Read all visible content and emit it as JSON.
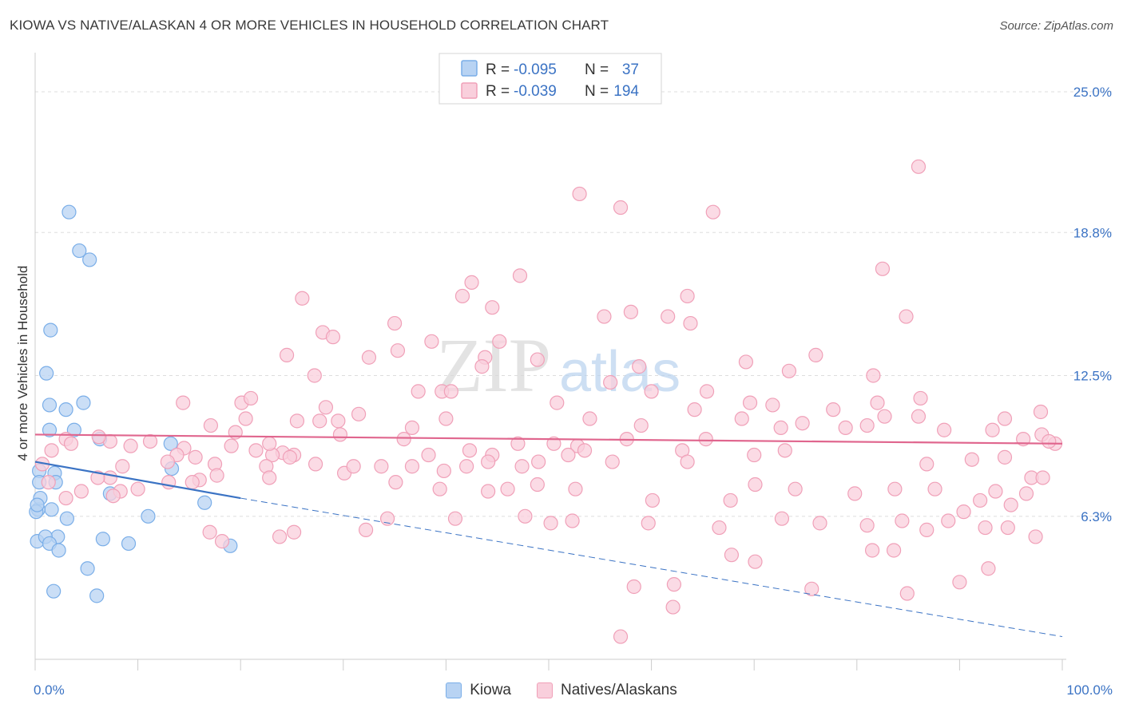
{
  "chart_data": {
    "type": "scatter",
    "title": "KIOWA VS NATIVE/ALASKAN 4 OR MORE VEHICLES IN HOUSEHOLD CORRELATION CHART",
    "source": "Source: ZipAtlas.com",
    "xlabel": "",
    "ylabel": "4 or more Vehicles in Household",
    "xlim": [
      0,
      100
    ],
    "ylim": [
      0,
      26.3
    ],
    "y_ticks": [
      {
        "value": 6.3,
        "label": "6.3%"
      },
      {
        "value": 12.5,
        "label": "12.5%"
      },
      {
        "value": 18.8,
        "label": "18.8%"
      },
      {
        "value": 25.0,
        "label": "25.0%"
      }
    ],
    "x_ticks": [
      {
        "value": 0,
        "label": "0.0%"
      },
      {
        "value": 100,
        "label": "100.0%"
      }
    ],
    "grid": true,
    "watermark": "ZIPatlas",
    "legend_box": [
      {
        "r_label": "R =",
        "r_value": "-0.095",
        "n_label": "N =",
        "n_value": "37"
      },
      {
        "r_label": "R =",
        "r_value": "-0.039",
        "n_label": "N =",
        "n_value": "194"
      }
    ],
    "series": [
      {
        "name": "Kiowa",
        "color": "#7aaee8",
        "fill": "#b8d3f3",
        "trend": {
          "x0": 0,
          "y0": 8.7,
          "x1": 20,
          "y1": 7.1,
          "dash_to_x": 100,
          "dash_to_y": 1.0,
          "color": "#3b73c4"
        },
        "points": [
          [
            3.3,
            19.7
          ],
          [
            5.3,
            17.6
          ],
          [
            4.3,
            18.0
          ],
          [
            1.5,
            14.5
          ],
          [
            1.1,
            12.6
          ],
          [
            1.4,
            11.2
          ],
          [
            4.7,
            11.3
          ],
          [
            3.0,
            11.0
          ],
          [
            1.4,
            10.1
          ],
          [
            3.8,
            10.1
          ],
          [
            6.3,
            9.7
          ],
          [
            13.2,
            9.5
          ],
          [
            0.4,
            8.3
          ],
          [
            1.9,
            8.2
          ],
          [
            13.3,
            8.4
          ],
          [
            0.4,
            7.8
          ],
          [
            2.0,
            7.8
          ],
          [
            7.3,
            7.3
          ],
          [
            1.6,
            6.6
          ],
          [
            0.3,
            6.6
          ],
          [
            16.5,
            6.9
          ],
          [
            0.5,
            7.1
          ],
          [
            3.1,
            6.2
          ],
          [
            11.0,
            6.3
          ],
          [
            2.2,
            5.4
          ],
          [
            0.2,
            5.2
          ],
          [
            1.0,
            5.4
          ],
          [
            1.4,
            5.1
          ],
          [
            6.6,
            5.3
          ],
          [
            9.1,
            5.1
          ],
          [
            19.0,
            5.0
          ],
          [
            2.3,
            4.8
          ],
          [
            5.1,
            4.0
          ],
          [
            1.8,
            3.0
          ],
          [
            6.0,
            2.8
          ],
          [
            0.1,
            6.5
          ],
          [
            0.2,
            6.8
          ]
        ]
      },
      {
        "name": "Natives/Alaskans",
        "color": "#f0a0b8",
        "fill": "#f9cfdc",
        "trend": {
          "x0": 0,
          "y0": 9.9,
          "x1": 100,
          "y1": 9.5,
          "color": "#e0668e"
        },
        "points": [
          [
            86.0,
            21.7
          ],
          [
            53.0,
            20.5
          ],
          [
            57.0,
            19.9
          ],
          [
            66.0,
            19.7
          ],
          [
            82.5,
            17.2
          ],
          [
            47.2,
            16.9
          ],
          [
            42.5,
            16.6
          ],
          [
            41.6,
            16.0
          ],
          [
            63.5,
            16.0
          ],
          [
            26.0,
            15.9
          ],
          [
            44.5,
            15.5
          ],
          [
            58.0,
            15.3
          ],
          [
            55.4,
            15.1
          ],
          [
            61.6,
            15.1
          ],
          [
            84.8,
            15.1
          ],
          [
            35.0,
            14.8
          ],
          [
            63.8,
            14.8
          ],
          [
            28.0,
            14.4
          ],
          [
            29.0,
            14.2
          ],
          [
            38.6,
            14.0
          ],
          [
            45.2,
            14.0
          ],
          [
            35.3,
            13.6
          ],
          [
            24.5,
            13.4
          ],
          [
            32.5,
            13.3
          ],
          [
            43.8,
            13.3
          ],
          [
            48.9,
            13.2
          ],
          [
            69.2,
            13.1
          ],
          [
            76.0,
            13.4
          ],
          [
            43.5,
            12.9
          ],
          [
            58.8,
            12.9
          ],
          [
            27.2,
            12.5
          ],
          [
            73.4,
            12.7
          ],
          [
            81.6,
            12.5
          ],
          [
            56.0,
            12.2
          ],
          [
            37.3,
            11.8
          ],
          [
            39.6,
            11.8
          ],
          [
            40.5,
            11.8
          ],
          [
            60.0,
            11.8
          ],
          [
            65.4,
            11.8
          ],
          [
            14.4,
            11.3
          ],
          [
            20.1,
            11.3
          ],
          [
            21.0,
            11.5
          ],
          [
            28.3,
            11.1
          ],
          [
            50.8,
            11.3
          ],
          [
            69.6,
            11.3
          ],
          [
            71.8,
            11.2
          ],
          [
            77.7,
            11.0
          ],
          [
            82.0,
            11.3
          ],
          [
            86.2,
            11.5
          ],
          [
            31.5,
            10.8
          ],
          [
            40.0,
            10.6
          ],
          [
            54.0,
            10.6
          ],
          [
            64.2,
            11.0
          ],
          [
            68.8,
            10.6
          ],
          [
            82.7,
            10.7
          ],
          [
            86.0,
            10.7
          ],
          [
            94.4,
            10.6
          ],
          [
            97.9,
            10.9
          ],
          [
            20.5,
            10.6
          ],
          [
            25.5,
            10.5
          ],
          [
            27.7,
            10.5
          ],
          [
            29.5,
            10.5
          ],
          [
            36.7,
            10.2
          ],
          [
            19.5,
            10.0
          ],
          [
            17.1,
            10.3
          ],
          [
            59.0,
            10.3
          ],
          [
            72.6,
            10.2
          ],
          [
            74.7,
            10.4
          ],
          [
            78.9,
            10.2
          ],
          [
            81.0,
            10.3
          ],
          [
            88.5,
            10.1
          ],
          [
            93.2,
            10.1
          ],
          [
            98.0,
            9.9
          ],
          [
            99.3,
            9.5
          ],
          [
            96.2,
            9.7
          ],
          [
            29.7,
            9.9
          ],
          [
            35.9,
            9.7
          ],
          [
            57.6,
            9.7
          ],
          [
            65.3,
            9.7
          ],
          [
            52.8,
            9.4
          ],
          [
            50.5,
            9.5
          ],
          [
            47.0,
            9.5
          ],
          [
            42.3,
            9.2
          ],
          [
            38.3,
            9.0
          ],
          [
            24.1,
            9.1
          ],
          [
            23.1,
            9.0
          ],
          [
            22.8,
            9.5
          ],
          [
            21.5,
            9.2
          ],
          [
            19.1,
            9.4
          ],
          [
            14.5,
            9.3
          ],
          [
            11.2,
            9.6
          ],
          [
            9.3,
            9.4
          ],
          [
            7.3,
            9.6
          ],
          [
            6.2,
            9.8
          ],
          [
            3.0,
            9.7
          ],
          [
            1.6,
            9.2
          ],
          [
            0.7,
            8.6
          ],
          [
            73.0,
            9.2
          ],
          [
            70.0,
            9.0
          ],
          [
            63.0,
            9.2
          ],
          [
            53.5,
            9.2
          ],
          [
            51.9,
            9.0
          ],
          [
            44.5,
            9.0
          ],
          [
            44.1,
            8.7
          ],
          [
            42.0,
            8.5
          ],
          [
            36.7,
            8.5
          ],
          [
            33.7,
            8.5
          ],
          [
            25.2,
            9.0
          ],
          [
            24.8,
            8.9
          ],
          [
            22.5,
            8.5
          ],
          [
            17.5,
            8.6
          ],
          [
            15.6,
            8.9
          ],
          [
            13.8,
            9.0
          ],
          [
            12.9,
            8.7
          ],
          [
            8.5,
            8.5
          ],
          [
            7.3,
            8.0
          ],
          [
            6.1,
            8.0
          ],
          [
            3.5,
            9.5
          ],
          [
            1.3,
            7.8
          ],
          [
            86.8,
            8.6
          ],
          [
            91.2,
            8.8
          ],
          [
            94.4,
            8.9
          ],
          [
            97.0,
            8.0
          ],
          [
            98.1,
            8.0
          ],
          [
            63.5,
            8.7
          ],
          [
            56.2,
            8.7
          ],
          [
            49.0,
            8.7
          ],
          [
            47.4,
            8.5
          ],
          [
            39.8,
            8.3
          ],
          [
            30.1,
            8.2
          ],
          [
            27.3,
            8.6
          ],
          [
            17.7,
            8.1
          ],
          [
            16.0,
            7.9
          ],
          [
            15.3,
            7.8
          ],
          [
            13.0,
            7.8
          ],
          [
            10.0,
            7.5
          ],
          [
            8.3,
            7.4
          ],
          [
            4.5,
            7.4
          ],
          [
            3.0,
            7.1
          ],
          [
            7.6,
            7.2
          ],
          [
            22.8,
            8.0
          ],
          [
            31.0,
            8.5
          ],
          [
            35.1,
            7.8
          ],
          [
            39.4,
            7.5
          ],
          [
            44.1,
            7.4
          ],
          [
            46.0,
            7.5
          ],
          [
            48.9,
            7.7
          ],
          [
            52.6,
            7.5
          ],
          [
            60.1,
            7.0
          ],
          [
            67.7,
            7.0
          ],
          [
            70.1,
            7.7
          ],
          [
            74.0,
            7.5
          ],
          [
            79.8,
            7.3
          ],
          [
            83.7,
            7.5
          ],
          [
            87.6,
            7.5
          ],
          [
            92.0,
            7.0
          ],
          [
            93.5,
            7.4
          ],
          [
            95.0,
            6.8
          ],
          [
            96.5,
            7.3
          ],
          [
            90.4,
            6.5
          ],
          [
            88.9,
            6.1
          ],
          [
            86.8,
            5.7
          ],
          [
            84.4,
            6.1
          ],
          [
            81.0,
            5.9
          ],
          [
            76.4,
            6.0
          ],
          [
            72.7,
            6.2
          ],
          [
            66.6,
            5.8
          ],
          [
            59.7,
            6.0
          ],
          [
            52.3,
            6.1
          ],
          [
            50.2,
            6.0
          ],
          [
            47.7,
            6.3
          ],
          [
            40.9,
            6.2
          ],
          [
            34.3,
            6.2
          ],
          [
            32.2,
            5.7
          ],
          [
            25.2,
            5.6
          ],
          [
            23.8,
            5.4
          ],
          [
            17.0,
            5.6
          ],
          [
            18.2,
            5.2
          ],
          [
            81.5,
            4.8
          ],
          [
            83.6,
            4.8
          ],
          [
            92.5,
            5.8
          ],
          [
            94.7,
            5.8
          ],
          [
            97.4,
            5.4
          ],
          [
            70.1,
            4.3
          ],
          [
            67.8,
            4.6
          ],
          [
            92.8,
            4.0
          ],
          [
            90.0,
            3.4
          ],
          [
            62.2,
            3.3
          ],
          [
            75.6,
            3.1
          ],
          [
            84.9,
            2.9
          ],
          [
            58.3,
            3.2
          ],
          [
            62.1,
            2.3
          ],
          [
            57.0,
            1.0
          ],
          [
            98.7,
            9.6
          ]
        ]
      }
    ]
  }
}
